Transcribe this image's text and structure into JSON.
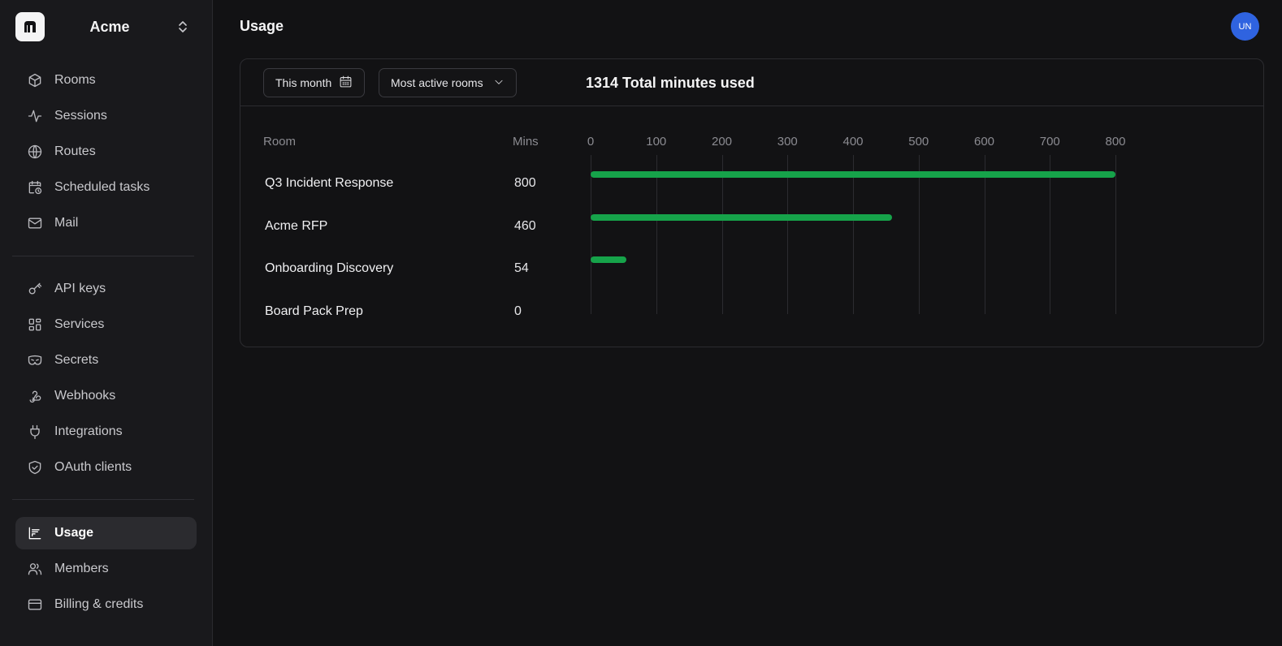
{
  "org": {
    "name": "Acme",
    "logo_text": "m"
  },
  "sidebar": {
    "group1": [
      {
        "label": "Rooms",
        "icon": "cube-icon"
      },
      {
        "label": "Sessions",
        "icon": "activity-icon"
      },
      {
        "label": "Routes",
        "icon": "globe-icon"
      },
      {
        "label": "Scheduled tasks",
        "icon": "calendar-clock-icon"
      },
      {
        "label": "Mail",
        "icon": "mail-icon"
      }
    ],
    "group2": [
      {
        "label": "API keys",
        "icon": "key-icon"
      },
      {
        "label": "Services",
        "icon": "grid-icon"
      },
      {
        "label": "Secrets",
        "icon": "mask-icon"
      },
      {
        "label": "Webhooks",
        "icon": "webhook-icon"
      },
      {
        "label": "Integrations",
        "icon": "plug-icon"
      },
      {
        "label": "OAuth clients",
        "icon": "shield-check-icon"
      }
    ],
    "group3": [
      {
        "label": "Usage",
        "icon": "bar-chart-icon",
        "active": true
      },
      {
        "label": "Members",
        "icon": "users-icon"
      },
      {
        "label": "Billing & credits",
        "icon": "credit-card-icon"
      }
    ]
  },
  "header": {
    "title": "Usage",
    "avatar_initials": "UN",
    "avatar_color": "#2f63e0"
  },
  "filters": {
    "date_range": "This month",
    "sort": "Most active rooms"
  },
  "summary": {
    "total_text": "1314 Total minutes used"
  },
  "table": {
    "col_room": "Room",
    "col_mins": "Mins"
  },
  "chart_data": {
    "type": "bar",
    "orientation": "horizontal",
    "categories": [
      "Q3 Incident Response",
      "Acme RFP",
      "Onboarding Discovery",
      "Board Pack Prep"
    ],
    "values": [
      800,
      460,
      54,
      0
    ],
    "xlim": [
      0,
      800
    ],
    "ticks": [
      "0",
      "100",
      "200",
      "300",
      "400",
      "500",
      "600",
      "700",
      "800"
    ],
    "bar_color": "#16a34a",
    "grid": true
  }
}
